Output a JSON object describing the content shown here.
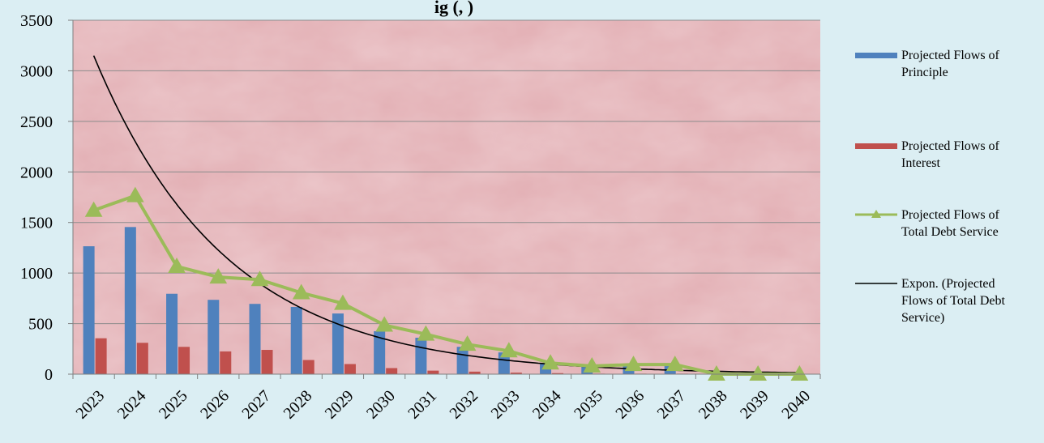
{
  "chart_data": {
    "type": "bar",
    "title": "ig (, )",
    "xlabel": "",
    "ylabel": "",
    "categories": [
      "2023",
      "2024",
      "2025",
      "2026",
      "2027",
      "2028",
      "2029",
      "2030",
      "2031",
      "2032",
      "2033",
      "2034",
      "2035",
      "2036",
      "2037",
      "2038",
      "2039",
      "2040"
    ],
    "ylim": [
      0,
      3500
    ],
    "yticks": [
      0,
      500,
      1000,
      1500,
      2000,
      2500,
      3000,
      3500
    ],
    "grid": true,
    "legend_position": "right",
    "series": [
      {
        "name": "Projected Flows of Principle",
        "kind": "bar",
        "color": "#4f81bd",
        "values": [
          1265,
          1455,
          795,
          735,
          695,
          665,
          600,
          425,
          360,
          270,
          215,
          100,
          75,
          90,
          90,
          0,
          0,
          0
        ]
      },
      {
        "name": "Projected Flows of Interest",
        "kind": "bar",
        "color": "#c0504d",
        "values": [
          355,
          310,
          270,
          225,
          240,
          140,
          100,
          60,
          35,
          25,
          15,
          10,
          5,
          5,
          5,
          0,
          0,
          0
        ]
      },
      {
        "name": "Projected Flows of Total Debt Service",
        "kind": "line",
        "marker": "triangle",
        "color": "#9bbb59",
        "values": [
          1620,
          1765,
          1065,
          960,
          935,
          805,
          700,
          485,
          395,
          295,
          230,
          110,
          80,
          95,
          95,
          0,
          0,
          0
        ]
      },
      {
        "name": "Expon. (Projected Flows of Total Debt Service)",
        "kind": "trendline",
        "color": "#000000",
        "start": 3150,
        "end": 15
      }
    ]
  }
}
